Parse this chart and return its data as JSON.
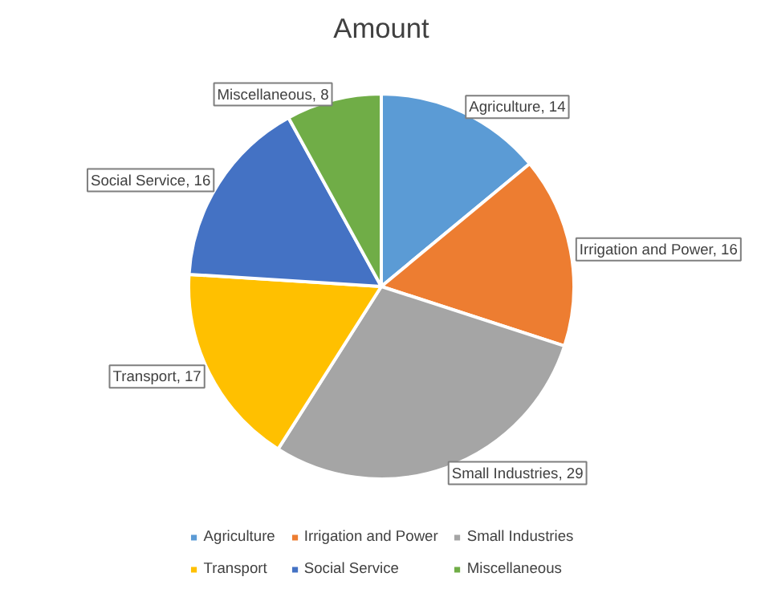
{
  "chart_data": {
    "type": "pie",
    "title": "Amount",
    "categories": [
      "Agriculture",
      "Irrigation and Power",
      "Small Industries",
      "Transport",
      "Social Service",
      "Miscellaneous"
    ],
    "values": [
      14,
      16,
      29,
      17,
      16,
      8
    ],
    "colors": [
      "#5b9bd5",
      "#ed7d31",
      "#a5a5a5",
      "#ffc000",
      "#4472c4",
      "#70ad47"
    ],
    "value_labels": [
      "Agriculture, 14",
      "Irrigation and Power, 16",
      "Small Industries, 29",
      "Transport, 17",
      "Social Service, 16",
      "Miscellaneous, 8"
    ],
    "legend": "bottom"
  }
}
